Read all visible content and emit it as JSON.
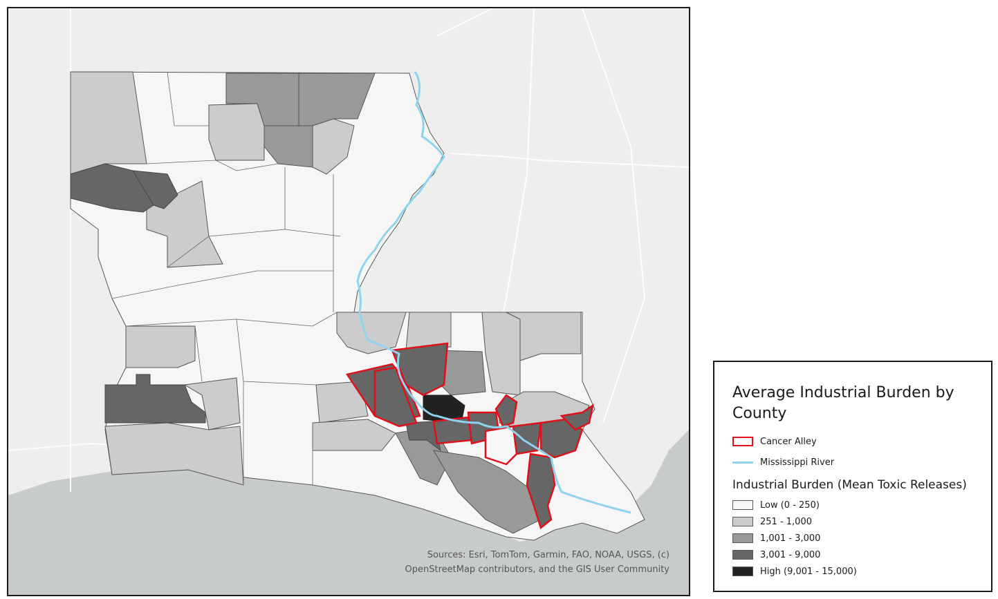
{
  "map": {
    "credits_line1": "Sources: Esri, TomTom, Garmin, FAO, NOAA, USGS, (c)",
    "credits_line2": "OpenStreetMap contributors, and the GIS User Community",
    "colors": {
      "water": "#c8cbcc",
      "land_basemap": "#eeeeee",
      "river": "#8fd3f0",
      "cancer_alley_outline": "#e0101a",
      "parish_border": "#555555"
    }
  },
  "legend": {
    "title": "Average Industrial Burden by County",
    "cancer_alley_label": "Cancer Alley",
    "river_label": "Mississippi River",
    "subtitle": "Industrial Burden (Mean Toxic Releases)",
    "classes": [
      {
        "label": "Low (0 - 250)",
        "color": "#f6f6f6"
      },
      {
        "label": "251 - 1,000",
        "color": "#cccccc"
      },
      {
        "label": "1,001 - 3,000",
        "color": "#999999"
      },
      {
        "label": "3,001 - 9,000",
        "color": "#666666"
      },
      {
        "label": "High (9,001 - 15,000)",
        "color": "#222222"
      }
    ]
  }
}
